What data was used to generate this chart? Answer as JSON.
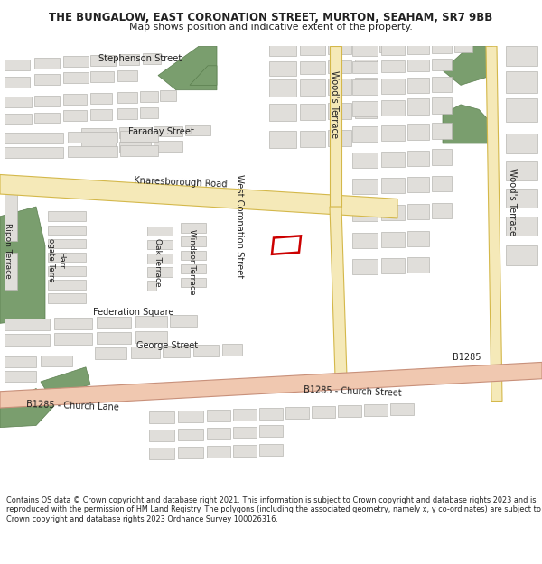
{
  "title": "THE BUNGALOW, EAST CORONATION STREET, MURTON, SEAHAM, SR7 9BB",
  "subtitle": "Map shows position and indicative extent of the property.",
  "footer": "Contains OS data © Crown copyright and database right 2021. This information is subject to Crown copyright and database rights 2023 and is reproduced with the permission of HM Land Registry. The polygons (including the associated geometry, namely x, y co-ordinates) are subject to Crown copyright and database rights 2023 Ordnance Survey 100026316.",
  "map_bg": "#f2f1ee",
  "road_yellow_fill": "#f5e9b8",
  "road_yellow_edge": "#d4b84a",
  "road_pink_fill": "#f0c8b0",
  "road_pink_edge": "#c8907a",
  "building_fill": "#e0deda",
  "building_edge": "#b8b6b2",
  "green_fill": "#7a9e6e",
  "green_edge": "#5a7e4e",
  "property_color": "#cc0000",
  "text_color": "#222222",
  "lw_building": 0.5,
  "lw_road": 0.8
}
